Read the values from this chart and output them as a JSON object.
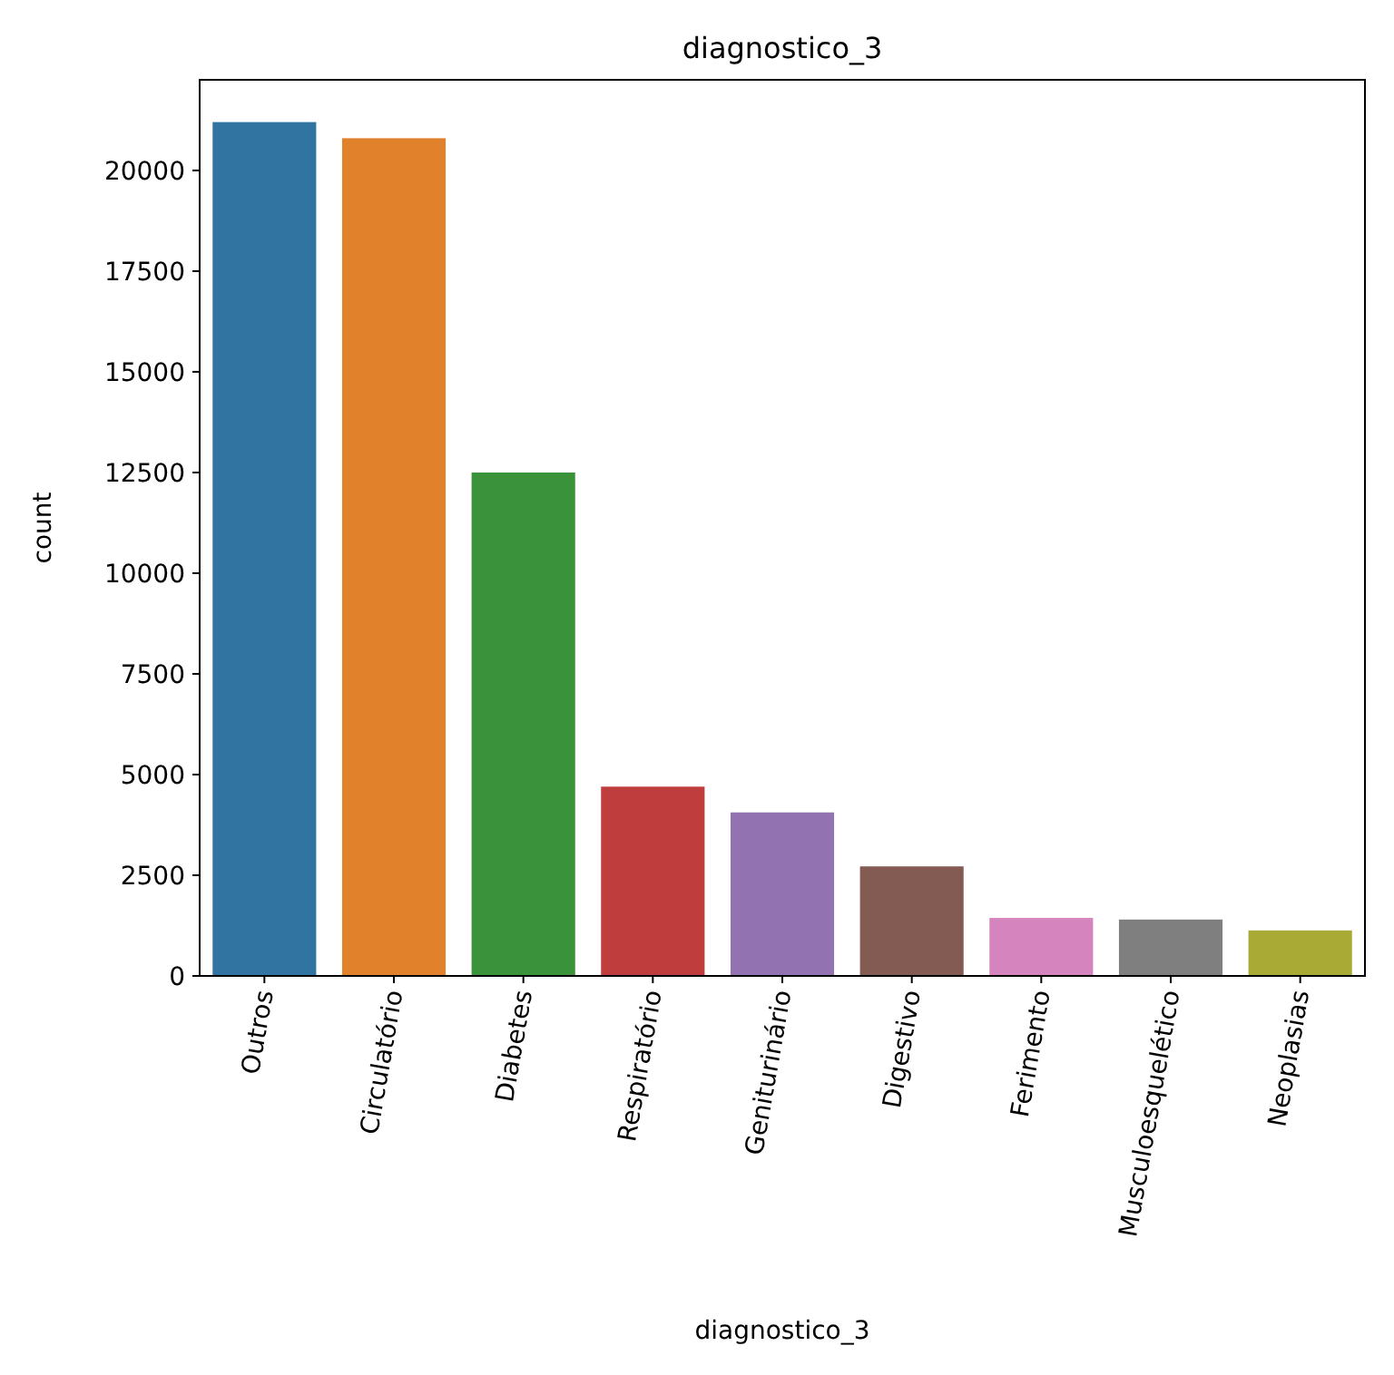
{
  "chart_data": {
    "type": "bar",
    "title": "diagnostico_3",
    "xlabel": "diagnostico_3",
    "ylabel": "count",
    "categories": [
      "Outros",
      "Circulatório",
      "Diabetes",
      "Respiratório",
      "Geniturinário",
      "Digestivo",
      "Ferimento",
      "Musculoesquelético",
      "Neoplasias"
    ],
    "values": [
      21200,
      20800,
      12500,
      4700,
      4060,
      2720,
      1440,
      1400,
      1130
    ],
    "colors": [
      "#3274a1",
      "#e1812c",
      "#3a923a",
      "#c03d3e",
      "#9372b2",
      "#845b53",
      "#d684bd",
      "#7f7f7f",
      "#a9aa35"
    ],
    "ylim": [
      0,
      22250
    ],
    "yticks": [
      0,
      2500,
      5000,
      7500,
      10000,
      12500,
      15000,
      17500,
      20000
    ]
  }
}
